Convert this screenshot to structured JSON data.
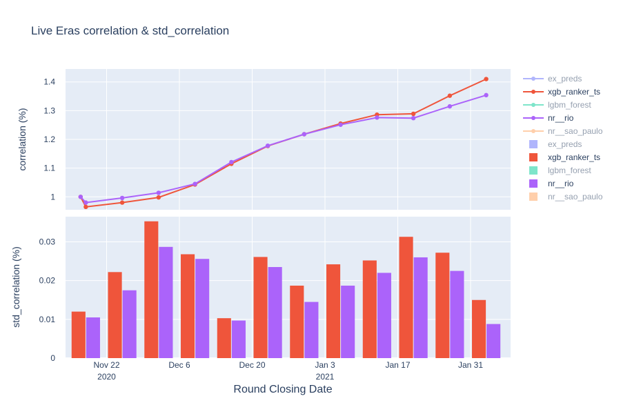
{
  "chart_data": {
    "title": "Live Eras correlation & std_correlation",
    "xlabel": "Round Closing Date",
    "x_ticks": [
      {
        "date": "2020-11-22",
        "label": "Nov 22",
        "sublabel": "2020"
      },
      {
        "date": "2020-12-06",
        "label": "Dec 6",
        "sublabel": ""
      },
      {
        "date": "2020-12-20",
        "label": "Dec 20",
        "sublabel": ""
      },
      {
        "date": "2021-01-03",
        "label": "Jan 3",
        "sublabel": "2021"
      },
      {
        "date": "2021-01-17",
        "label": "Jan 17",
        "sublabel": ""
      },
      {
        "date": "2021-01-31",
        "label": "Jan 31",
        "sublabel": ""
      }
    ],
    "grid": true,
    "legend_position": "right",
    "background_color": "#e5ecf6",
    "subplots": [
      {
        "type": "line",
        "ylabel": "correlation (%)",
        "ylim": [
          0.955,
          1.445
        ],
        "yticks": [
          1,
          1.1,
          1.2,
          1.3,
          1.4
        ],
        "ytick_labels": [
          "1",
          "1.1",
          "1.2",
          "1.3",
          "1.4"
        ],
        "series": [
          {
            "name": "xgb_ranker_ts",
            "color": "#ef553b",
            "x": [
              "2020-11-17",
              "2020-11-18",
              "2020-11-25",
              "2020-12-02",
              "2020-12-09",
              "2020-12-16",
              "2020-12-23",
              "2020-12-30",
              "2021-01-06",
              "2021-01-13",
              "2021-01-20",
              "2021-01-27",
              "2021-02-03"
            ],
            "y": [
              1.0,
              0.965,
              0.98,
              0.998,
              1.043,
              1.115,
              1.177,
              1.218,
              1.255,
              1.286,
              1.289,
              1.352,
              1.41
            ]
          },
          {
            "name": "nr__rio",
            "color": "#ab63fa",
            "x": [
              "2020-11-17",
              "2020-11-18",
              "2020-11-25",
              "2020-12-02",
              "2020-12-09",
              "2020-12-16",
              "2020-12-23",
              "2020-12-30",
              "2021-01-06",
              "2021-01-13",
              "2021-01-20",
              "2021-01-27",
              "2021-02-03"
            ],
            "y": [
              1.0,
              0.98,
              0.996,
              1.014,
              1.045,
              1.121,
              1.178,
              1.218,
              1.251,
              1.276,
              1.274,
              1.315,
              1.354
            ]
          }
        ]
      },
      {
        "type": "bar",
        "ylabel": "std_correlation (%)",
        "ylim": [
          0,
          0.0365
        ],
        "yticks": [
          0,
          0.01,
          0.02,
          0.03
        ],
        "ytick_labels": [
          "0",
          "0.01",
          "0.02",
          "0.03"
        ],
        "categories": [
          "2020-11-18",
          "2020-11-25",
          "2020-12-02",
          "2020-12-09",
          "2020-12-16",
          "2020-12-23",
          "2020-12-30",
          "2021-01-06",
          "2021-01-13",
          "2021-01-20",
          "2021-01-27",
          "2021-02-03"
        ],
        "series": [
          {
            "name": "xgb_ranker_ts",
            "color": "#ef553b",
            "values": [
              0.012,
              0.0222,
              0.0353,
              0.0268,
              0.0103,
              0.0261,
              0.0187,
              0.0242,
              0.0252,
              0.0313,
              0.0272,
              0.015
            ]
          },
          {
            "name": "nr__rio",
            "color": "#ab63fa",
            "values": [
              0.0105,
              0.0175,
              0.0287,
              0.0256,
              0.0097,
              0.0235,
              0.0145,
              0.0187,
              0.022,
              0.026,
              0.0225,
              0.0088
            ]
          }
        ]
      }
    ],
    "legend": [
      {
        "label": "ex_preds",
        "kind": "line",
        "color": "#636efa",
        "hidden": true
      },
      {
        "label": "xgb_ranker_ts",
        "kind": "line",
        "color": "#ef553b",
        "hidden": false
      },
      {
        "label": "lgbm_forest",
        "kind": "line",
        "color": "#00cc96",
        "hidden": true
      },
      {
        "label": "nr__rio",
        "kind": "line",
        "color": "#ab63fa",
        "hidden": false
      },
      {
        "label": "nr__sao_paulo",
        "kind": "line",
        "color": "#ffa15a",
        "hidden": true
      },
      {
        "label": "ex_preds",
        "kind": "bar",
        "color": "#636efa",
        "hidden": true
      },
      {
        "label": "xgb_ranker_ts",
        "kind": "bar",
        "color": "#ef553b",
        "hidden": false
      },
      {
        "label": "lgbm_forest",
        "kind": "bar",
        "color": "#00cc96",
        "hidden": true
      },
      {
        "label": "nr__rio",
        "kind": "bar",
        "color": "#ab63fa",
        "hidden": false
      },
      {
        "label": "nr__sao_paulo",
        "kind": "bar",
        "color": "#ffa15a",
        "hidden": true
      }
    ]
  }
}
